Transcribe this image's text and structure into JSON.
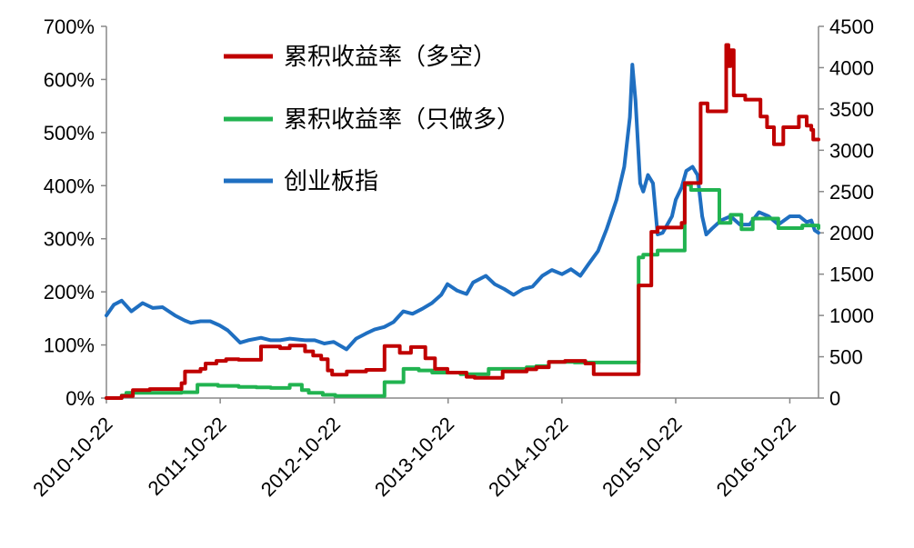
{
  "chart_data": {
    "type": "line",
    "title": "",
    "xlabel": "",
    "ylabel": "",
    "x_ticks": [
      "2010-10-22",
      "2011-10-22",
      "2012-10-22",
      "2013-10-22",
      "2014-10-22",
      "2015-10-22",
      "2016-10-22"
    ],
    "x_range": [
      "2010-10-22",
      "2017-01-22"
    ],
    "y_left": {
      "ticks": [
        "0%",
        "100%",
        "200%",
        "300%",
        "400%",
        "500%",
        "600%",
        "700%"
      ],
      "range": [
        0,
        700
      ],
      "unit": "%"
    },
    "y_right": {
      "ticks": [
        "0",
        "500",
        "1000",
        "1500",
        "2000",
        "2500",
        "3000",
        "3500",
        "4000",
        "4500"
      ],
      "range": [
        0,
        4500
      ]
    },
    "grid": false,
    "legend_position": "top-center",
    "series": [
      {
        "name": "累积收益率（多空）",
        "color": "#C00000",
        "axis": "left",
        "step": true,
        "points": [
          [
            "2010-10-22",
            0
          ],
          [
            "2010-12-10",
            4
          ],
          [
            "2011-01-15",
            15
          ],
          [
            "2011-03-10",
            17
          ],
          [
            "2011-06-20",
            28
          ],
          [
            "2011-07-01",
            50
          ],
          [
            "2011-08-20",
            55
          ],
          [
            "2011-09-05",
            65
          ],
          [
            "2011-10-10",
            70
          ],
          [
            "2011-11-10",
            73
          ],
          [
            "2011-12-20",
            72
          ],
          [
            "2012-03-01",
            97
          ],
          [
            "2012-05-01",
            94
          ],
          [
            "2012-06-01",
            99
          ],
          [
            "2012-07-20",
            88
          ],
          [
            "2012-08-15",
            80
          ],
          [
            "2012-09-10",
            73
          ],
          [
            "2012-10-01",
            52
          ],
          [
            "2012-10-15",
            44
          ],
          [
            "2012-12-01",
            50
          ],
          [
            "2013-02-01",
            53
          ],
          [
            "2013-04-01",
            98
          ],
          [
            "2013-05-20",
            85
          ],
          [
            "2013-06-25",
            96
          ],
          [
            "2013-08-10",
            75
          ],
          [
            "2013-09-10",
            55
          ],
          [
            "2013-10-20",
            48
          ],
          [
            "2013-12-20",
            40
          ],
          [
            "2014-01-15",
            38
          ],
          [
            "2014-04-15",
            50
          ],
          [
            "2014-07-01",
            54
          ],
          [
            "2014-08-01",
            58
          ],
          [
            "2014-09-10",
            68
          ],
          [
            "2014-11-01",
            70
          ],
          [
            "2015-01-05",
            65
          ],
          [
            "2015-02-01",
            45
          ],
          [
            "2015-06-25",
            212
          ],
          [
            "2015-08-05",
            313
          ],
          [
            "2015-08-25",
            321
          ],
          [
            "2015-11-10",
            330
          ],
          [
            "2015-11-20",
            405
          ],
          [
            "2016-01-10",
            555
          ],
          [
            "2016-02-01",
            540
          ],
          [
            "2016-04-01",
            665
          ],
          [
            "2016-04-08",
            625
          ],
          [
            "2016-04-15",
            655
          ],
          [
            "2016-04-25",
            570
          ],
          [
            "2016-06-01",
            562
          ],
          [
            "2016-07-20",
            530
          ],
          [
            "2016-08-10",
            510
          ],
          [
            "2016-09-01",
            478
          ],
          [
            "2016-10-01",
            510
          ],
          [
            "2016-11-20",
            530
          ],
          [
            "2016-12-15",
            513
          ],
          [
            "2016-12-30",
            505
          ],
          [
            "2017-01-05",
            487
          ],
          [
            "2017-01-22",
            487
          ]
        ]
      },
      {
        "name": "累积收益率（只做多）",
        "color": "#21B350",
        "axis": "left",
        "step": true,
        "points": [
          [
            "2010-10-22",
            0
          ],
          [
            "2010-12-10",
            5
          ],
          [
            "2010-12-25",
            10
          ],
          [
            "2011-06-20",
            11
          ],
          [
            "2011-08-10",
            25
          ],
          [
            "2011-10-15",
            23
          ],
          [
            "2011-12-20",
            21
          ],
          [
            "2012-02-15",
            20
          ],
          [
            "2012-04-01",
            19
          ],
          [
            "2012-06-01",
            25
          ],
          [
            "2012-07-10",
            15
          ],
          [
            "2012-08-01",
            10
          ],
          [
            "2012-09-15",
            6
          ],
          [
            "2012-10-25",
            4
          ],
          [
            "2013-04-01",
            30
          ],
          [
            "2013-06-01",
            55
          ],
          [
            "2013-07-20",
            52
          ],
          [
            "2013-09-01",
            48
          ],
          [
            "2013-12-01",
            45
          ],
          [
            "2014-03-01",
            55
          ],
          [
            "2014-07-01",
            58
          ],
          [
            "2014-08-01",
            60
          ],
          [
            "2014-09-10",
            68
          ],
          [
            "2014-12-01",
            67
          ],
          [
            "2015-06-25",
            265
          ],
          [
            "2015-07-10",
            270
          ],
          [
            "2015-08-25",
            278
          ],
          [
            "2015-11-10",
            278
          ],
          [
            "2015-11-20",
            402
          ],
          [
            "2015-12-10",
            392
          ],
          [
            "2016-03-10",
            330
          ],
          [
            "2016-04-15",
            345
          ],
          [
            "2016-05-20",
            318
          ],
          [
            "2016-06-25",
            338
          ],
          [
            "2016-09-15",
            320
          ],
          [
            "2016-12-01",
            325
          ],
          [
            "2017-01-22",
            320
          ]
        ]
      },
      {
        "name": "创业板指",
        "color": "#1F6FC1",
        "axis": "right",
        "step": false,
        "points": [
          [
            "2010-10-22",
            1000
          ],
          [
            "2010-11-15",
            1130
          ],
          [
            "2010-12-10",
            1180
          ],
          [
            "2011-01-10",
            1050
          ],
          [
            "2011-02-15",
            1150
          ],
          [
            "2011-03-20",
            1090
          ],
          [
            "2011-04-20",
            1100
          ],
          [
            "2011-05-30",
            1000
          ],
          [
            "2011-06-30",
            940
          ],
          [
            "2011-07-20",
            910
          ],
          [
            "2011-08-20",
            930
          ],
          [
            "2011-09-20",
            930
          ],
          [
            "2011-10-20",
            880
          ],
          [
            "2011-11-15",
            820
          ],
          [
            "2011-12-25",
            670
          ],
          [
            "2012-01-20",
            700
          ],
          [
            "2012-03-01",
            730
          ],
          [
            "2012-04-01",
            700
          ],
          [
            "2012-05-01",
            700
          ],
          [
            "2012-06-01",
            720
          ],
          [
            "2012-07-20",
            700
          ],
          [
            "2012-08-20",
            700
          ],
          [
            "2012-09-20",
            660
          ],
          [
            "2012-10-20",
            680
          ],
          [
            "2012-11-30",
            590
          ],
          [
            "2012-12-31",
            720
          ],
          [
            "2013-01-31",
            780
          ],
          [
            "2013-02-28",
            830
          ],
          [
            "2013-03-31",
            860
          ],
          [
            "2013-04-30",
            920
          ],
          [
            "2013-05-31",
            1050
          ],
          [
            "2013-06-30",
            1020
          ],
          [
            "2013-07-31",
            1080
          ],
          [
            "2013-08-31",
            1150
          ],
          [
            "2013-09-30",
            1250
          ],
          [
            "2013-10-20",
            1380
          ],
          [
            "2013-11-20",
            1300
          ],
          [
            "2013-12-20",
            1260
          ],
          [
            "2014-01-10",
            1400
          ],
          [
            "2014-02-20",
            1480
          ],
          [
            "2014-03-20",
            1380
          ],
          [
            "2014-04-20",
            1320
          ],
          [
            "2014-05-20",
            1250
          ],
          [
            "2014-06-20",
            1320
          ],
          [
            "2014-07-20",
            1350
          ],
          [
            "2014-08-20",
            1480
          ],
          [
            "2014-09-20",
            1550
          ],
          [
            "2014-10-22",
            1500
          ],
          [
            "2014-11-20",
            1560
          ],
          [
            "2014-12-20",
            1480
          ],
          [
            "2015-01-15",
            1620
          ],
          [
            "2015-02-15",
            1780
          ],
          [
            "2015-03-15",
            2050
          ],
          [
            "2015-04-15",
            2400
          ],
          [
            "2015-05-10",
            2800
          ],
          [
            "2015-05-28",
            3400
          ],
          [
            "2015-06-05",
            4037
          ],
          [
            "2015-06-15",
            3600
          ],
          [
            "2015-06-30",
            2600
          ],
          [
            "2015-07-10",
            2500
          ],
          [
            "2015-07-25",
            2700
          ],
          [
            "2015-08-10",
            2600
          ],
          [
            "2015-08-25",
            1980
          ],
          [
            "2015-09-10",
            2000
          ],
          [
            "2015-10-10",
            2200
          ],
          [
            "2015-10-22",
            2400
          ],
          [
            "2015-11-10",
            2550
          ],
          [
            "2015-11-25",
            2750
          ],
          [
            "2015-12-15",
            2800
          ],
          [
            "2015-12-31",
            2700
          ],
          [
            "2016-01-15",
            2200
          ],
          [
            "2016-01-28",
            1980
          ],
          [
            "2016-02-15",
            2050
          ],
          [
            "2016-03-15",
            2150
          ],
          [
            "2016-04-15",
            2200
          ],
          [
            "2016-05-15",
            2100
          ],
          [
            "2016-06-15",
            2100
          ],
          [
            "2016-07-15",
            2250
          ],
          [
            "2016-08-15",
            2200
          ],
          [
            "2016-09-15",
            2100
          ],
          [
            "2016-10-22",
            2200
          ],
          [
            "2016-11-22",
            2200
          ],
          [
            "2016-12-15",
            2130
          ],
          [
            "2016-12-30",
            2150
          ],
          [
            "2017-01-10",
            2030
          ],
          [
            "2017-01-22",
            2000
          ]
        ]
      }
    ]
  }
}
